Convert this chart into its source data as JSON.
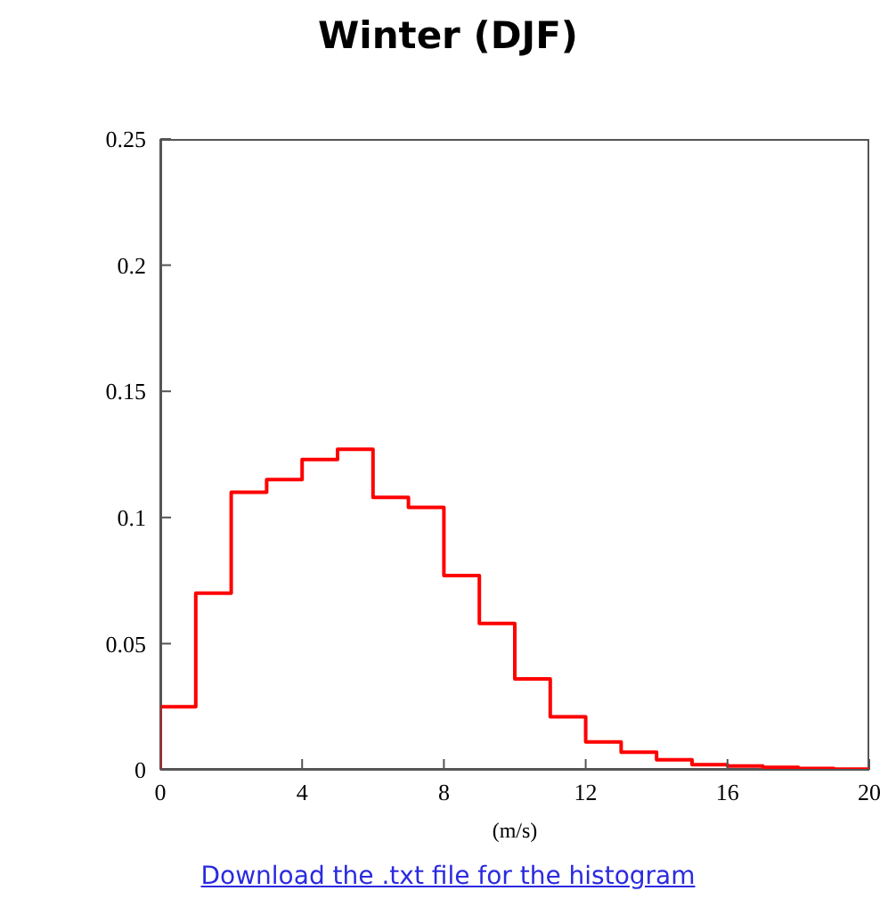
{
  "chart_data": {
    "type": "histogram",
    "title": "Winter (DJF)",
    "xlabel": "(m/s)",
    "annotations": [
      "Download the .txt file for the histogram"
    ],
    "bins": [
      0,
      1,
      2,
      3,
      4,
      5,
      6,
      7,
      8,
      9,
      10,
      11,
      12,
      13,
      14,
      15,
      16,
      17,
      18,
      19,
      20
    ],
    "values": [
      0.025,
      0.07,
      0.11,
      0.115,
      0.123,
      0.127,
      0.108,
      0.104,
      0.077,
      0.058,
      0.036,
      0.021,
      0.011,
      0.007,
      0.004,
      0.002,
      0.0015,
      0.001,
      0.0005,
      0.0003
    ],
    "color": "#ff0000",
    "xlim": [
      0,
      20
    ],
    "xticks": [
      0,
      4,
      8,
      12,
      16,
      20
    ],
    "ylim": [
      0,
      0.25
    ],
    "yticks": [
      0,
      0.05,
      0.1,
      0.15,
      0.2,
      0.25
    ]
  }
}
